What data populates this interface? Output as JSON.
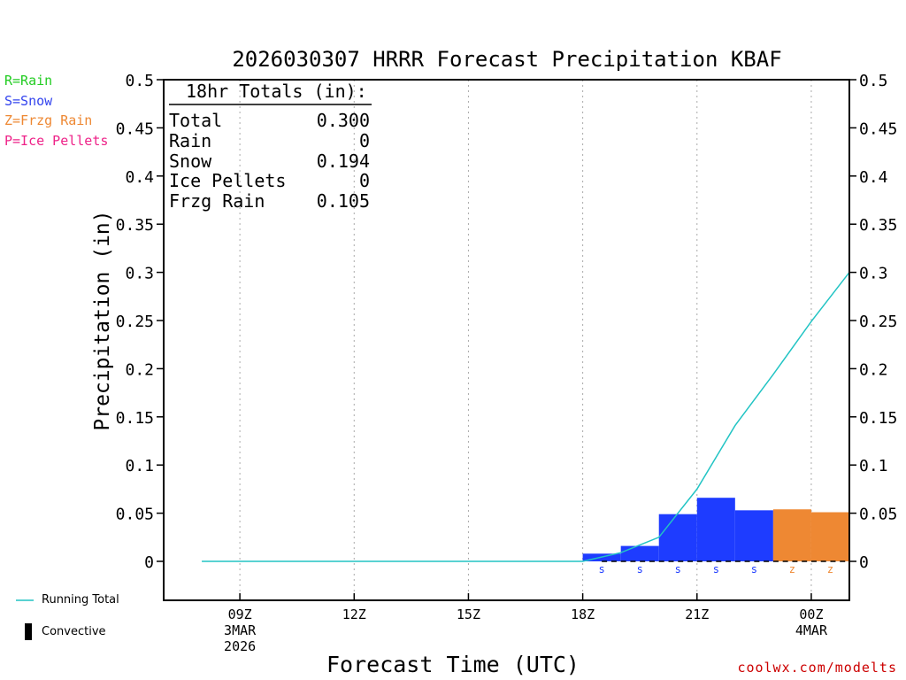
{
  "legend_keys": [
    {
      "text": "R=Rain",
      "color": "#22cc22"
    },
    {
      "text": "S=Snow",
      "color": "#3344ee"
    },
    {
      "text": "Z=Frzg Rain",
      "color": "#ee8833"
    },
    {
      "text": "P=Ice Pellets",
      "color": "#ee2288"
    }
  ],
  "line_legend": {
    "running_total": "Running Total",
    "convective": "Convective"
  },
  "credit": "coolwx.com/modelts",
  "totals_box": {
    "heading": "18hr Totals (in):",
    "rows": [
      {
        "label": "Total",
        "value": "0.300"
      },
      {
        "label": "Rain",
        "value": "0"
      },
      {
        "label": "Snow",
        "value": "0.194"
      },
      {
        "label": "Ice Pellets",
        "value": "0"
      },
      {
        "label": "Frzg Rain",
        "value": "0.105"
      }
    ]
  },
  "colors": {
    "snow": "#1e3cff",
    "frzg_rain": "#ee8833",
    "running_total": "#22c4c4",
    "axis": "#000000",
    "grid": "#aaaaaa",
    "credit": "#cc0000"
  },
  "chart_data": {
    "type": "bar",
    "title": "2026030307 HRRR Forecast Precipitation KBAF",
    "xlabel": "Forecast Time (UTC)",
    "ylabel": "Precipitation (in)",
    "ylim": [
      -0.04,
      0.5
    ],
    "yticks": [
      0,
      0.05,
      0.1,
      0.15,
      0.2,
      0.25,
      0.3,
      0.35,
      0.4,
      0.45,
      0.5
    ],
    "ytick_labels": [
      "0",
      "0.05",
      "0.1",
      "0.15",
      "0.2",
      "0.25",
      "0.3",
      "0.35",
      "0.4",
      "0.45",
      "0.5"
    ],
    "x_range_hours": [
      7,
      25
    ],
    "xticks": [
      {
        "hour": 9,
        "lines": [
          "09Z",
          "3MAR",
          "2026"
        ]
      },
      {
        "hour": 12,
        "lines": [
          "12Z"
        ]
      },
      {
        "hour": 15,
        "lines": [
          "15Z"
        ]
      },
      {
        "hour": 18,
        "lines": [
          "18Z"
        ]
      },
      {
        "hour": 21,
        "lines": [
          "21Z"
        ]
      },
      {
        "hour": 24,
        "lines": [
          "00Z",
          "4MAR"
        ]
      }
    ],
    "hourly_precip": [
      {
        "hour": 19,
        "value": 0.008,
        "type": "S"
      },
      {
        "hour": 20,
        "value": 0.016,
        "type": "S"
      },
      {
        "hour": 21,
        "value": 0.049,
        "type": "S"
      },
      {
        "hour": 22,
        "value": 0.066,
        "type": "S"
      },
      {
        "hour": 23,
        "value": 0.053,
        "type": "S"
      },
      {
        "hour": 24,
        "value": 0.054,
        "type": "Z"
      },
      {
        "hour": 25,
        "value": 0.051,
        "type": "Z"
      }
    ],
    "running_total": {
      "hours": [
        8,
        9,
        10,
        11,
        12,
        13,
        14,
        15,
        16,
        17,
        18,
        19,
        20,
        21,
        22,
        23,
        24,
        25
      ],
      "values": [
        0,
        0,
        0,
        0,
        0,
        0,
        0,
        0,
        0,
        0,
        0,
        0.009,
        0.025,
        0.075,
        0.141,
        0.194,
        0.249,
        0.3
      ]
    }
  }
}
